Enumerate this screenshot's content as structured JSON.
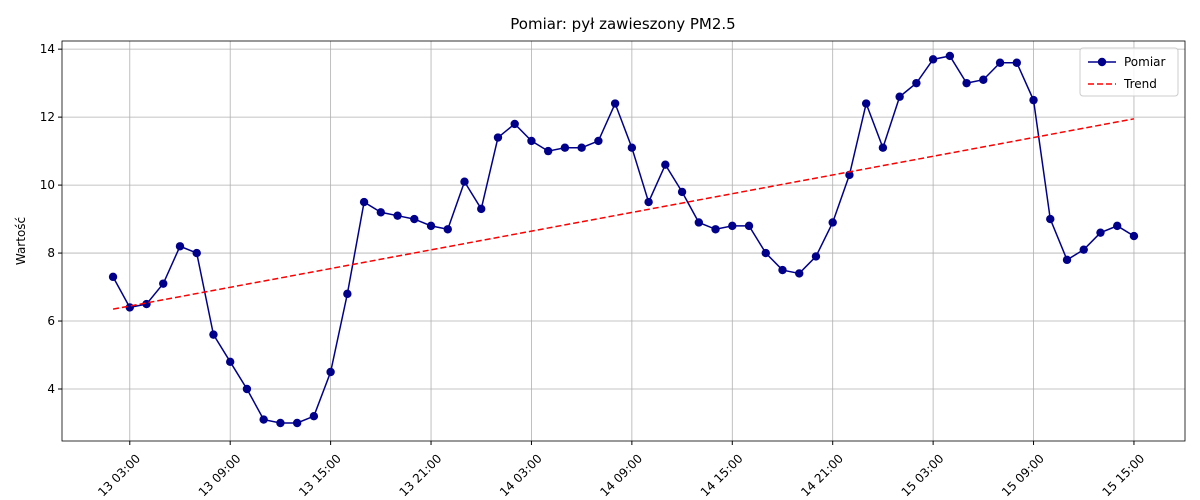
{
  "chart_data": {
    "type": "line",
    "title": "Pomiar: pył zawieszony PM2.5",
    "y_label": "Wartość",
    "x": [
      "13 02:00",
      "13 03:00",
      "13 04:00",
      "13 05:00",
      "13 06:00",
      "13 07:00",
      "13 08:00",
      "13 09:00",
      "13 10:00",
      "13 11:00",
      "13 12:00",
      "13 13:00",
      "13 14:00",
      "13 15:00",
      "13 16:00",
      "13 17:00",
      "13 18:00",
      "13 19:00",
      "13 20:00",
      "13 21:00",
      "13 22:00",
      "13 23:00",
      "14 00:00",
      "14 01:00",
      "14 02:00",
      "14 03:00",
      "14 04:00",
      "14 05:00",
      "14 06:00",
      "14 07:00",
      "14 08:00",
      "14 09:00",
      "14 10:00",
      "14 11:00",
      "14 12:00",
      "14 13:00",
      "14 14:00",
      "14 15:00",
      "14 16:00",
      "14 17:00",
      "14 18:00",
      "14 19:00",
      "14 20:00",
      "14 21:00",
      "14 22:00",
      "14 23:00",
      "15 00:00",
      "15 01:00",
      "15 02:00",
      "15 03:00",
      "15 04:00",
      "15 05:00",
      "15 06:00",
      "15 07:00",
      "15 08:00",
      "15 09:00",
      "15 10:00",
      "15 11:00",
      "15 12:00",
      "15 13:00",
      "15 14:00",
      "15 15:00"
    ],
    "series": [
      {
        "name": "Pomiar",
        "color": "#00008b",
        "style": "solid",
        "marker": true,
        "values": [
          7.3,
          6.4,
          6.5,
          7.1,
          8.2,
          8.0,
          5.6,
          4.8,
          4.0,
          3.1,
          3.0,
          3.0,
          3.2,
          4.5,
          6.8,
          9.5,
          9.2,
          9.1,
          9.0,
          8.8,
          8.7,
          10.1,
          9.3,
          11.4,
          11.8,
          11.3,
          11.0,
          11.1,
          11.1,
          11.3,
          12.4,
          11.1,
          9.5,
          10.6,
          9.8,
          8.9,
          8.7,
          8.8,
          8.8,
          8.0,
          7.5,
          7.4,
          7.9,
          8.9,
          10.3,
          12.4,
          11.1,
          12.6,
          13.0,
          13.7,
          13.8,
          13.0,
          13.1,
          13.6,
          13.6,
          12.5,
          9.0,
          7.8,
          8.1,
          8.6,
          8.8,
          8.5
        ]
      },
      {
        "name": "Trend",
        "color": "#ff0000",
        "style": "dashed",
        "marker": false,
        "x": [
          "13 02:00",
          "15 15:00"
        ],
        "values": [
          6.35,
          11.95
        ]
      }
    ],
    "xticks": [
      "13 03:00",
      "13 09:00",
      "13 15:00",
      "13 21:00",
      "14 03:00",
      "14 09:00",
      "14 15:00",
      "14 21:00",
      "15 03:00",
      "15 09:00",
      "15 15:00"
    ],
    "ylim": [
      2.47,
      14.24
    ],
    "yticks": [
      4,
      6,
      8,
      10,
      12,
      14
    ],
    "grid": true,
    "legend": "upper right"
  }
}
